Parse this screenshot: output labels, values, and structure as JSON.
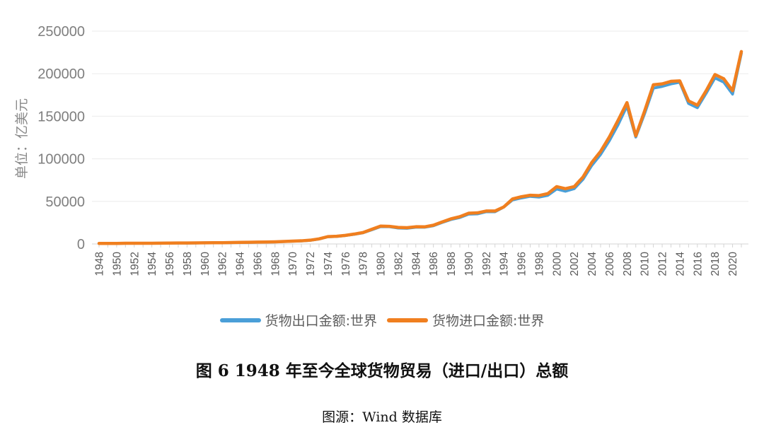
{
  "chart_data": {
    "type": "line",
    "title": "",
    "xlabel": "",
    "ylabel": "单位：亿美元",
    "ylim": [
      0,
      250000
    ],
    "yticks": [
      "250000",
      "200000",
      "150000",
      "100000",
      "50000",
      "0"
    ],
    "x": [
      1948,
      1949,
      1950,
      1951,
      1952,
      1953,
      1954,
      1955,
      1956,
      1957,
      1958,
      1959,
      1960,
      1961,
      1962,
      1963,
      1964,
      1965,
      1966,
      1967,
      1968,
      1969,
      1970,
      1971,
      1972,
      1973,
      1974,
      1975,
      1976,
      1977,
      1978,
      1979,
      1980,
      1981,
      1982,
      1983,
      1984,
      1985,
      1986,
      1987,
      1988,
      1989,
      1990,
      1991,
      1992,
      1993,
      1994,
      1995,
      1996,
      1997,
      1998,
      1999,
      2000,
      2001,
      2002,
      2003,
      2004,
      2005,
      2006,
      2007,
      2008,
      2009,
      2010,
      2011,
      2012,
      2013,
      2014,
      2015,
      2016,
      2017,
      2018,
      2019,
      2020,
      2021
    ],
    "xticks": [
      "1948",
      "1950",
      "1952",
      "1954",
      "1956",
      "1958",
      "1960",
      "1962",
      "1964",
      "1966",
      "1968",
      "1970",
      "1972",
      "1974",
      "1976",
      "1978",
      "1980",
      "1982",
      "1984",
      "1986",
      "1988",
      "1990",
      "1992",
      "1994",
      "1996",
      "1998",
      "2000",
      "2002",
      "2004",
      "2006",
      "2008",
      "2010",
      "2012",
      "2014",
      "2016",
      "2018",
      "2020"
    ],
    "series": [
      {
        "name": "货物出口金额:世界",
        "color": "#4a9fd8",
        "values": [
          590,
          590,
          620,
          820,
          800,
          830,
          860,
          940,
          1040,
          1120,
          1090,
          1160,
          1300,
          1350,
          1420,
          1550,
          1740,
          1880,
          2050,
          2150,
          2410,
          2770,
          3170,
          3530,
          4210,
          5760,
          8410,
          8790,
          9900,
          11300,
          13100,
          16600,
          20400,
          20200,
          18700,
          18400,
          19600,
          19600,
          21400,
          25200,
          28700,
          31000,
          35000,
          35300,
          37800,
          37800,
          43300,
          51700,
          54000,
          55900,
          55000,
          57100,
          64500,
          61900,
          64900,
          75900,
          92200,
          105100,
          121300,
          140200,
          162000,
          125600,
          153000,
          183000,
          185000,
          188000,
          190000,
          165000,
          160000,
          177000,
          195000,
          190000,
          176000,
          224000
        ]
      },
      {
        "name": "货物进口金额:世界",
        "color": "#f07f1f",
        "values": [
          620,
          620,
          640,
          860,
          830,
          840,
          880,
          980,
          1090,
          1170,
          1130,
          1200,
          1360,
          1400,
          1480,
          1620,
          1820,
          1980,
          2170,
          2260,
          2530,
          2900,
          3300,
          3690,
          4420,
          5970,
          8610,
          9040,
          10100,
          11600,
          13400,
          17200,
          21000,
          20700,
          19400,
          19100,
          20200,
          20100,
          22000,
          25900,
          29500,
          32000,
          36100,
          36500,
          38700,
          38700,
          43500,
          52900,
          55500,
          57200,
          56800,
          59100,
          67300,
          64900,
          67300,
          78600,
          95700,
          108700,
          125700,
          145400,
          166000,
          127000,
          156000,
          187000,
          188000,
          191000,
          191500,
          168000,
          163000,
          180000,
          199000,
          194000,
          180000,
          226000
        ]
      }
    ]
  },
  "caption": "图 6 1948 年至今全球货物贸易（进口/出口）总额",
  "source": {
    "label": "图源",
    "separator": "：",
    "text": "Wind 数据库"
  }
}
